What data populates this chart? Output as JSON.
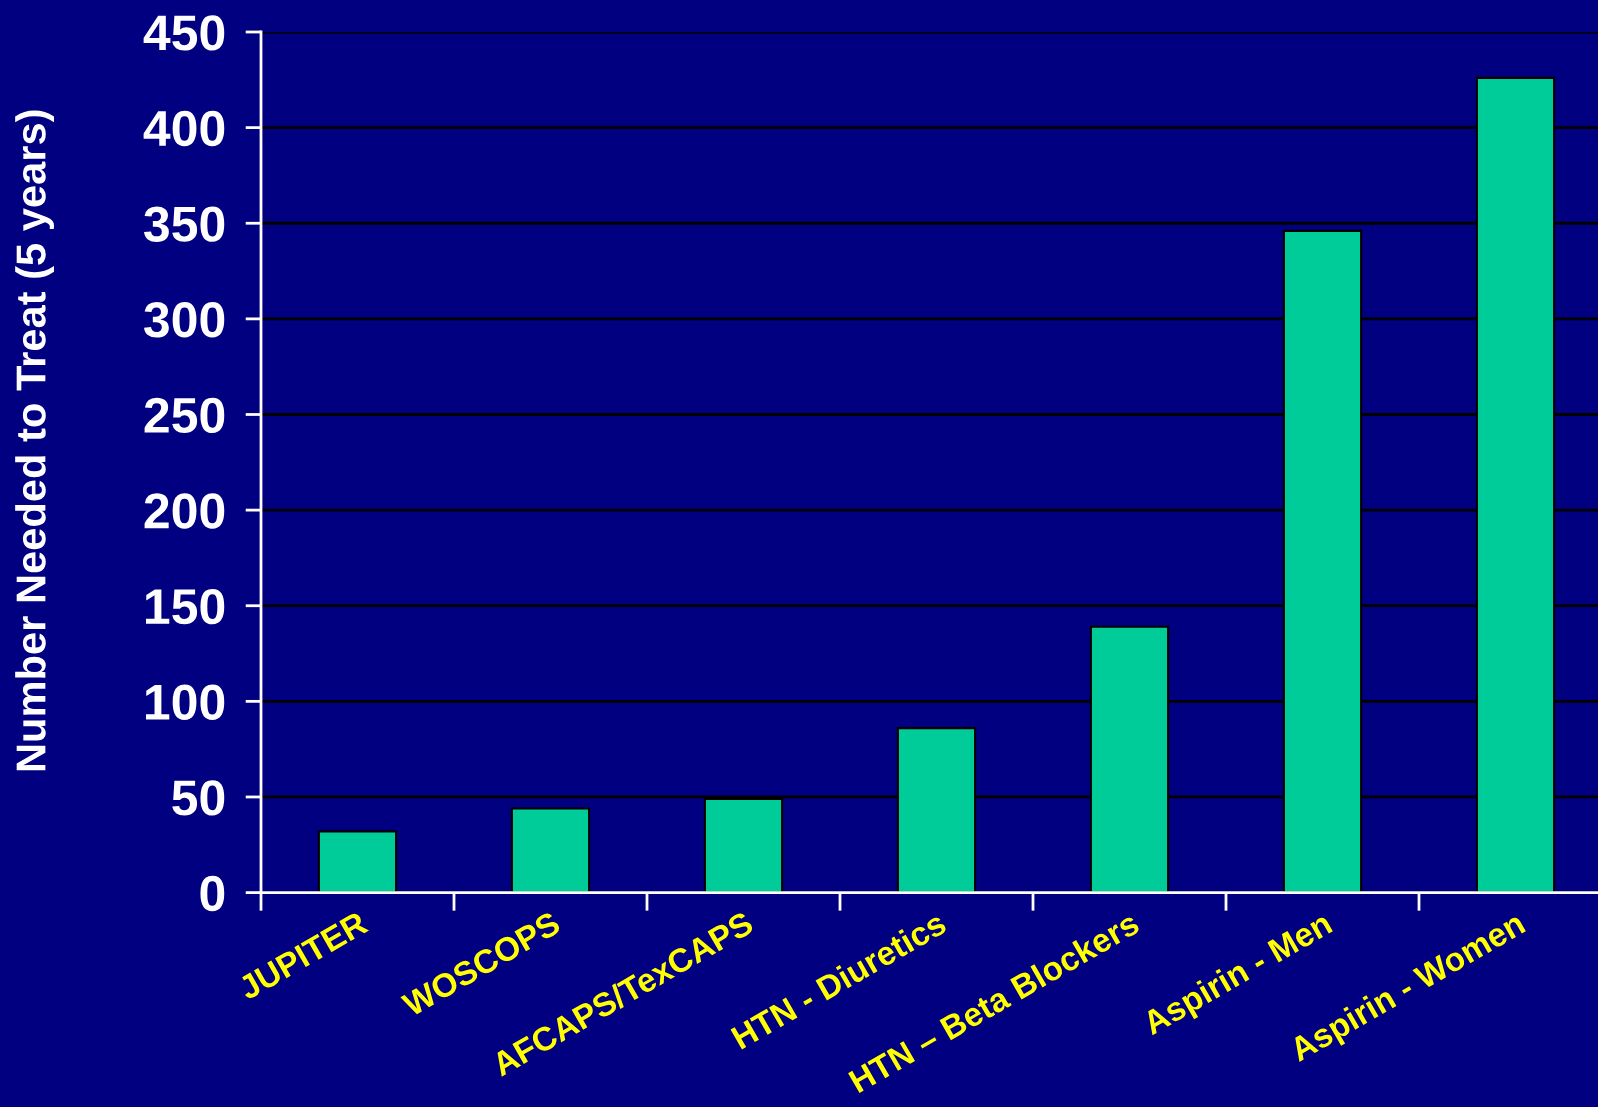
{
  "chart_data": {
    "type": "bar",
    "ylabel": "Number Needed to Treat (5 years)",
    "categories": [
      "JUPITER",
      "WOSCOPS",
      "AFCAPS/TexCAPS",
      "HTN - Diuretics",
      "HTN – Beta Blockers",
      "Aspirin - Men",
      "Aspirin - Women"
    ],
    "values": [
      32,
      44,
      49,
      86,
      139,
      346,
      426
    ],
    "color": "#00cc99",
    "ylim": [
      0,
      450
    ],
    "yticks": [
      0,
      50,
      100,
      150,
      200,
      250,
      300,
      350,
      400,
      450
    ],
    "grid": "y"
  }
}
